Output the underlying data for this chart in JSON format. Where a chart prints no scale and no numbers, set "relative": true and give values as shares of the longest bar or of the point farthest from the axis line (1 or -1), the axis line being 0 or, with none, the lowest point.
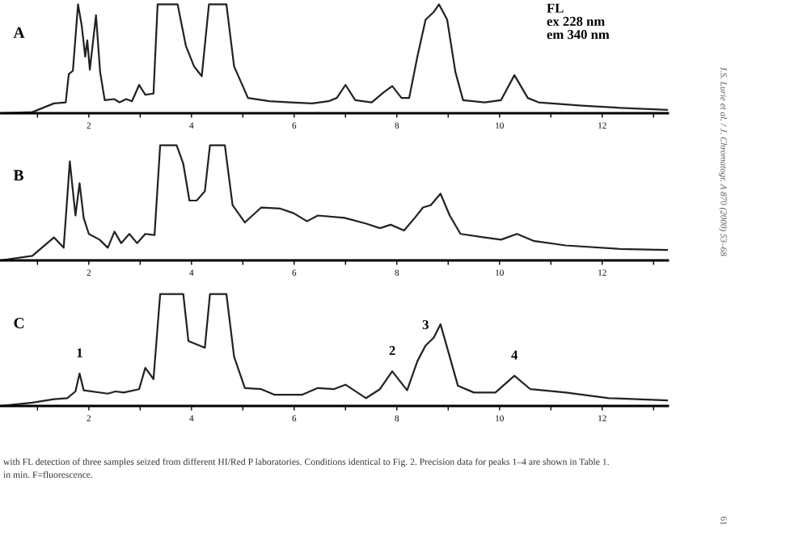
{
  "chart_data": [
    {
      "type": "line",
      "title": "A",
      "relative": true,
      "xlim": [
        0.27,
        13.28
      ],
      "xticks": [
        {
          "value": 1,
          "label": null
        },
        2,
        {
          "value": 3,
          "label": null
        },
        4,
        {
          "value": 5,
          "label": null
        },
        6,
        {
          "value": 7,
          "label": null
        },
        8,
        {
          "value": 9,
          "label": null
        },
        10,
        {
          "value": 11,
          "label": null
        },
        12,
        {
          "value": 13,
          "label": null
        }
      ],
      "grid": false,
      "legend": false,
      "annotations": [
        "FL\nex 228 nm\nem 340 nm",
        "I.S. Lurie et al. / J. Chromatogr. A 870 (2000) 53–68",
        "61"
      ],
      "series": [
        {
          "color": "#222222",
          "x": [
            0.27,
            0.9,
            1.32,
            1.55,
            1.61,
            1.69,
            1.79,
            1.86,
            1.93,
            1.97,
            2.02,
            2.14,
            2.22,
            2.31,
            2.49,
            2.6,
            2.73,
            2.84,
            2.98,
            3.1,
            3.26,
            3.34,
            3.73,
            3.89,
            4.05,
            4.2,
            4.34,
            4.68,
            4.83,
            5.1,
            5.52,
            5.93,
            6.35,
            6.67,
            6.83,
            7.0,
            7.19,
            7.51,
            7.74,
            7.91,
            8.09,
            8.24,
            8.4,
            8.56,
            8.72,
            8.82,
            8.98,
            9.14,
            9.29,
            9.71,
            10.03,
            10.29,
            10.55,
            10.76,
            11.6,
            12.34,
            13.28
          ],
          "values": [
            0,
            0.01,
            0.09,
            0.1,
            0.36,
            0.39,
            1.0,
            0.81,
            0.52,
            0.67,
            0.4,
            0.9,
            0.38,
            0.12,
            0.13,
            0.1,
            0.13,
            0.11,
            0.26,
            0.17,
            0.18,
            1.0,
            1.0,
            0.62,
            0.43,
            0.34,
            1.0,
            1.0,
            0.43,
            0.14,
            0.11,
            0.1,
            0.09,
            0.11,
            0.14,
            0.26,
            0.12,
            0.1,
            0.19,
            0.25,
            0.14,
            0.14,
            0.52,
            0.86,
            0.93,
            1.0,
            0.86,
            0.38,
            0.12,
            0.1,
            0.12,
            0.35,
            0.14,
            0.1,
            0.07,
            0.05,
            0.03
          ]
        }
      ]
    },
    {
      "type": "line",
      "title": "B",
      "relative": true,
      "xlim": [
        0.27,
        13.28
      ],
      "xticks": [
        {
          "value": 1,
          "label": null
        },
        2,
        {
          "value": 3,
          "label": null
        },
        4,
        {
          "value": 5,
          "label": null
        },
        6,
        {
          "value": 7,
          "label": null
        },
        8,
        {
          "value": 9,
          "label": null
        },
        10,
        {
          "value": 11,
          "label": null
        },
        12,
        {
          "value": 13,
          "label": null
        }
      ],
      "grid": false,
      "legend": false,
      "series": [
        {
          "color": "#222222",
          "x": [
            0.27,
            0.9,
            1.32,
            1.51,
            1.63,
            1.74,
            1.82,
            1.9,
            2.0,
            2.21,
            2.37,
            2.5,
            2.63,
            2.79,
            2.94,
            3.1,
            3.28,
            3.39,
            3.71,
            3.84,
            3.96,
            4.1,
            4.26,
            4.36,
            4.65,
            4.8,
            5.04,
            5.36,
            5.73,
            5.99,
            6.25,
            6.46,
            6.98,
            7.4,
            7.67,
            7.88,
            8.14,
            8.35,
            8.51,
            8.66,
            8.85,
            9.03,
            9.24,
            9.71,
            10.03,
            10.34,
            10.66,
            11.29,
            12.34,
            13.28
          ],
          "values": [
            0,
            0.04,
            0.2,
            0.11,
            0.86,
            0.39,
            0.67,
            0.37,
            0.23,
            0.18,
            0.11,
            0.25,
            0.15,
            0.23,
            0.15,
            0.23,
            0.22,
            1.0,
            1.0,
            0.84,
            0.52,
            0.52,
            0.6,
            1.0,
            1.0,
            0.48,
            0.33,
            0.46,
            0.45,
            0.41,
            0.34,
            0.39,
            0.37,
            0.32,
            0.28,
            0.31,
            0.26,
            0.37,
            0.46,
            0.48,
            0.58,
            0.39,
            0.23,
            0.2,
            0.18,
            0.23,
            0.17,
            0.13,
            0.1,
            0.09
          ]
        }
      ]
    },
    {
      "type": "line",
      "title": "C",
      "relative": true,
      "xlim": [
        0.27,
        13.28
      ],
      "xticks": [
        {
          "value": 1,
          "label": null
        },
        2,
        {
          "value": 3,
          "label": null
        },
        4,
        {
          "value": 5,
          "label": null
        },
        6,
        {
          "value": 7,
          "label": null
        },
        8,
        {
          "value": 9,
          "label": null
        },
        10,
        {
          "value": 11,
          "label": null
        },
        12,
        {
          "value": 13,
          "label": null
        }
      ],
      "grid": false,
      "legend": false,
      "annotations": [
        {
          "text": "1",
          "x": 1.82,
          "y": 0.29
        },
        {
          "text": "2",
          "x": 7.91,
          "y": 0.31
        },
        {
          "text": "3",
          "x": 8.56,
          "y": 0.54
        },
        {
          "text": "4",
          "x": 10.29,
          "y": 0.27
        },
        "with FL detection of three samples seized from different HI/Red P laboratories. Conditions identical to Fig. 2. Precision data for peaks 1–4 are shown in Table 1.",
        "in min. F=fluorescence."
      ],
      "series": [
        {
          "color": "#222222",
          "x": [
            0.27,
            0.9,
            1.32,
            1.58,
            1.74,
            1.82,
            1.9,
            2.37,
            2.52,
            2.68,
            2.98,
            3.1,
            3.26,
            3.39,
            3.84,
            3.94,
            4.26,
            4.36,
            4.68,
            4.83,
            5.04,
            5.36,
            5.62,
            6.15,
            6.46,
            6.77,
            7.0,
            7.4,
            7.67,
            7.91,
            8.2,
            8.4,
            8.56,
            8.72,
            8.85,
            9.03,
            9.19,
            9.5,
            9.92,
            10.29,
            10.6,
            11.29,
            12.13,
            13.28
          ],
          "values": [
            0,
            0.03,
            0.06,
            0.07,
            0.13,
            0.29,
            0.14,
            0.11,
            0.13,
            0.12,
            0.15,
            0.34,
            0.24,
            1.0,
            1.0,
            0.58,
            0.52,
            1.0,
            1.0,
            0.44,
            0.16,
            0.15,
            0.1,
            0.1,
            0.16,
            0.15,
            0.19,
            0.07,
            0.15,
            0.31,
            0.14,
            0.4,
            0.54,
            0.61,
            0.73,
            0.44,
            0.18,
            0.12,
            0.12,
            0.27,
            0.15,
            0.12,
            0.07,
            0.05
          ]
        }
      ]
    }
  ]
}
